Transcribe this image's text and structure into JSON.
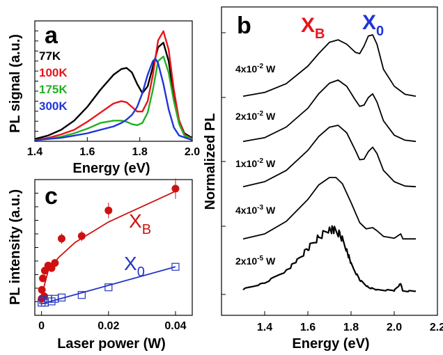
{
  "colors": {
    "black": "#000000",
    "red": "#e8141b",
    "green": "#22b022",
    "blue": "#1f35d8",
    "dark_red": "#d01010",
    "dark_blue": "#2435c0"
  },
  "chart_data": [
    {
      "id": "a",
      "type": "line",
      "panel_label": "a",
      "xlabel": "Energy (eV)",
      "ylabel": "PL signal (a.u.)",
      "xlim": [
        1.4,
        2.0
      ],
      "ylim": [
        0,
        1.05
      ],
      "xticks": [
        "1.4",
        "1.6",
        "1.8",
        "2.0"
      ],
      "grid": false,
      "legend_position": "top-left",
      "series": [
        {
          "name": "77K",
          "color": "#000000",
          "x": [
            1.4,
            1.45,
            1.5,
            1.55,
            1.6,
            1.65,
            1.7,
            1.73,
            1.75,
            1.77,
            1.79,
            1.81,
            1.83,
            1.85,
            1.87,
            1.89,
            1.91,
            1.93,
            1.95,
            1.97,
            2.0
          ],
          "y": [
            0.02,
            0.05,
            0.1,
            0.18,
            0.3,
            0.45,
            0.58,
            0.63,
            0.64,
            0.6,
            0.5,
            0.42,
            0.48,
            0.65,
            0.82,
            0.86,
            0.7,
            0.4,
            0.18,
            0.07,
            0.03
          ]
        },
        {
          "name": "100K",
          "color": "#e8141b",
          "x": [
            1.4,
            1.45,
            1.5,
            1.55,
            1.6,
            1.65,
            1.7,
            1.73,
            1.75,
            1.77,
            1.79,
            1.81,
            1.83,
            1.85,
            1.87,
            1.89,
            1.91,
            1.93,
            1.95,
            1.97,
            2.0
          ],
          "y": [
            0.01,
            0.03,
            0.06,
            0.1,
            0.17,
            0.25,
            0.33,
            0.35,
            0.34,
            0.3,
            0.26,
            0.26,
            0.35,
            0.58,
            0.88,
            0.96,
            0.8,
            0.45,
            0.18,
            0.06,
            0.02
          ]
        },
        {
          "name": "175K",
          "color": "#22b022",
          "x": [
            1.4,
            1.45,
            1.5,
            1.55,
            1.6,
            1.65,
            1.7,
            1.73,
            1.75,
            1.77,
            1.79,
            1.81,
            1.83,
            1.85,
            1.87,
            1.89,
            1.91,
            1.93,
            1.95,
            1.97,
            2.0
          ],
          "y": [
            0.01,
            0.02,
            0.04,
            0.07,
            0.11,
            0.16,
            0.18,
            0.18,
            0.17,
            0.15,
            0.14,
            0.16,
            0.25,
            0.45,
            0.7,
            0.74,
            0.6,
            0.35,
            0.15,
            0.05,
            0.02
          ]
        },
        {
          "name": "300K",
          "color": "#1f35d8",
          "x": [
            1.4,
            1.45,
            1.5,
            1.55,
            1.6,
            1.65,
            1.7,
            1.73,
            1.75,
            1.77,
            1.79,
            1.81,
            1.83,
            1.85,
            1.86,
            1.87,
            1.89,
            1.91,
            1.93,
            1.95,
            2.0
          ],
          "y": [
            0.01,
            0.02,
            0.03,
            0.05,
            0.07,
            0.1,
            0.13,
            0.16,
            0.19,
            0.23,
            0.3,
            0.42,
            0.58,
            0.7,
            0.72,
            0.68,
            0.5,
            0.28,
            0.12,
            0.05,
            0.01
          ]
        }
      ]
    },
    {
      "id": "b",
      "type": "line",
      "panel_label": "b",
      "xlabel": "Energy (eV)",
      "ylabel": "Normalized PL",
      "xlim": [
        1.2,
        2.2
      ],
      "xticks": [
        "1.4",
        "1.6",
        "1.8",
        "2.0",
        "2.2"
      ],
      "grid": false,
      "annotations": [
        {
          "text": "X",
          "sub": "B",
          "color": "#e8141b"
        },
        {
          "text": "X",
          "sub": "0",
          "color": "#1f35d8"
        }
      ],
      "series": [
        {
          "name": "4x10",
          "exp": "-2",
          "unit": " W",
          "offset": 4,
          "x": [
            1.3,
            1.4,
            1.5,
            1.6,
            1.65,
            1.7,
            1.74,
            1.78,
            1.82,
            1.84,
            1.86,
            1.88,
            1.9,
            1.92,
            1.95,
            2.0,
            2.05,
            2.1
          ],
          "y": [
            0.02,
            0.08,
            0.22,
            0.5,
            0.7,
            0.88,
            0.92,
            0.85,
            0.72,
            0.7,
            0.82,
            0.98,
            1.0,
            0.85,
            0.45,
            0.18,
            0.05,
            0.02
          ]
        },
        {
          "name": "2x10",
          "exp": "-2",
          "unit": " W",
          "offset": 3,
          "x": [
            1.3,
            1.4,
            1.5,
            1.6,
            1.65,
            1.7,
            1.74,
            1.78,
            1.82,
            1.84,
            1.86,
            1.88,
            1.9,
            1.92,
            1.95,
            2.0,
            2.05,
            2.1
          ],
          "y": [
            0.02,
            0.08,
            0.25,
            0.55,
            0.78,
            0.95,
            1.0,
            0.9,
            0.68,
            0.58,
            0.6,
            0.72,
            0.78,
            0.65,
            0.35,
            0.12,
            0.04,
            0.02
          ]
        },
        {
          "name": "1x10",
          "exp": "-2",
          "unit": " W",
          "offset": 2,
          "x": [
            1.3,
            1.4,
            1.5,
            1.6,
            1.65,
            1.7,
            1.74,
            1.78,
            1.82,
            1.84,
            1.86,
            1.88,
            1.9,
            1.92,
            1.95,
            2.0,
            2.05,
            2.1
          ],
          "y": [
            0.02,
            0.1,
            0.28,
            0.6,
            0.82,
            0.97,
            1.0,
            0.88,
            0.6,
            0.45,
            0.46,
            0.58,
            0.65,
            0.55,
            0.28,
            0.1,
            0.03,
            0.02
          ]
        },
        {
          "name": "4x10",
          "exp": "-3",
          "unit": " W",
          "offset": 1,
          "x": [
            1.3,
            1.4,
            1.5,
            1.6,
            1.65,
            1.7,
            1.73,
            1.76,
            1.8,
            1.84,
            1.87,
            1.9,
            1.92,
            1.95,
            2.0,
            2.03,
            2.04,
            2.1
          ],
          "y": [
            0.02,
            0.1,
            0.3,
            0.65,
            0.88,
            1.0,
            1.0,
            0.9,
            0.6,
            0.28,
            0.18,
            0.2,
            0.15,
            0.06,
            0.03,
            0.1,
            0.02,
            0.02
          ]
        },
        {
          "name": "2x10",
          "exp": "-5",
          "unit": " W",
          "offset": 0,
          "x": [
            1.3,
            1.4,
            1.5,
            1.55,
            1.6,
            1.65,
            1.7,
            1.72,
            1.75,
            1.78,
            1.8,
            1.84,
            1.88,
            1.92,
            2.0,
            2.03,
            2.04,
            2.1
          ],
          "y": [
            0.05,
            0.15,
            0.35,
            0.5,
            0.7,
            0.88,
            1.0,
            1.0,
            0.92,
            0.68,
            0.45,
            0.2,
            0.08,
            0.04,
            0.03,
            0.14,
            0.02,
            0.02
          ]
        }
      ]
    },
    {
      "id": "c",
      "type": "scatter",
      "panel_label": "c",
      "xlabel": "Laser power (W)",
      "ylabel": "PL intensity (a.u.)",
      "xlim": [
        -0.002,
        0.045
      ],
      "ylim": [
        0,
        1.0
      ],
      "xticks": [
        "0",
        "0.02",
        "0.04"
      ],
      "grid": false,
      "series": [
        {
          "name": "X",
          "sub": "B",
          "color": "#d01010",
          "marker": "filled-circle",
          "x": [
            2e-05,
            0.0001,
            0.0004,
            0.0008,
            0.001,
            0.002,
            0.003,
            0.004,
            0.006,
            0.012,
            0.02,
            0.04
          ],
          "y": [
            0.08,
            0.15,
            0.24,
            0.1,
            0.3,
            0.34,
            0.32,
            0.36,
            0.55,
            0.57,
            0.77,
            0.94
          ],
          "yerr": [
            0.02,
            0.02,
            0.03,
            0.02,
            0.03,
            0.03,
            0.03,
            0.03,
            0.04,
            0.04,
            0.06,
            0.08
          ],
          "fit": [
            [
              0,
              0.1
            ],
            [
              0.002,
              0.3
            ],
            [
              0.005,
              0.4
            ],
            [
              0.01,
              0.52
            ],
            [
              0.015,
              0.6
            ],
            [
              0.02,
              0.68
            ],
            [
              0.025,
              0.74
            ],
            [
              0.03,
              0.8
            ],
            [
              0.035,
              0.86
            ],
            [
              0.04,
              0.92
            ]
          ]
        },
        {
          "name": "X",
          "sub": "0",
          "color": "#2435c0",
          "marker": "open-square",
          "x": [
            2e-05,
            0.0005,
            0.001,
            0.002,
            0.003,
            0.004,
            0.006,
            0.012,
            0.02,
            0.04
          ],
          "y": [
            0.05,
            0.07,
            0.05,
            0.08,
            0.06,
            0.08,
            0.09,
            0.11,
            0.17,
            0.33
          ],
          "fit": [
            [
              0,
              0.04
            ],
            [
              0.04,
              0.33
            ]
          ]
        }
      ]
    }
  ]
}
